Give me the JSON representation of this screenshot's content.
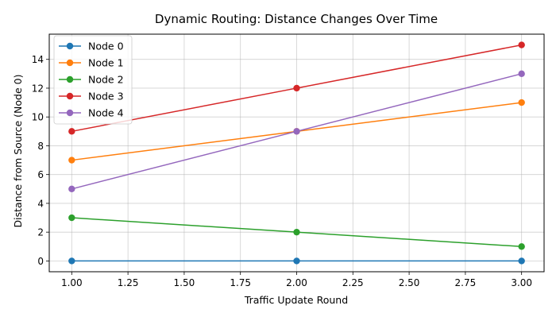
{
  "chart_data": {
    "type": "line",
    "title": "Dynamic Routing: Distance Changes Over Time",
    "xlabel": "Traffic Update Round",
    "ylabel": "Distance from Source (Node 0)",
    "x": [
      1,
      2,
      3
    ],
    "xlim": [
      0.9,
      3.1
    ],
    "ylim": [
      -0.75,
      15.75
    ],
    "xticks": [
      "1.00",
      "1.25",
      "1.50",
      "1.75",
      "2.00",
      "2.25",
      "2.50",
      "2.75",
      "3.00"
    ],
    "xtick_values": [
      1.0,
      1.25,
      1.5,
      1.75,
      2.0,
      2.25,
      2.5,
      2.75,
      3.0
    ],
    "yticks": [
      "0",
      "2",
      "4",
      "6",
      "8",
      "10",
      "12",
      "14"
    ],
    "ytick_values": [
      0,
      2,
      4,
      6,
      8,
      10,
      12,
      14
    ],
    "grid": true,
    "legend_position": "top-left",
    "marker": "circle",
    "series": [
      {
        "name": "Node 0",
        "values": [
          0,
          0,
          0
        ],
        "color": "#1f77b4"
      },
      {
        "name": "Node 1",
        "values": [
          7,
          9,
          11
        ],
        "color": "#ff7f0e"
      },
      {
        "name": "Node 2",
        "values": [
          3,
          2,
          1
        ],
        "color": "#2ca02c"
      },
      {
        "name": "Node 3",
        "values": [
          9,
          12,
          15
        ],
        "color": "#d62728"
      },
      {
        "name": "Node 4",
        "values": [
          5,
          9,
          13
        ],
        "color": "#9467bd"
      }
    ]
  }
}
